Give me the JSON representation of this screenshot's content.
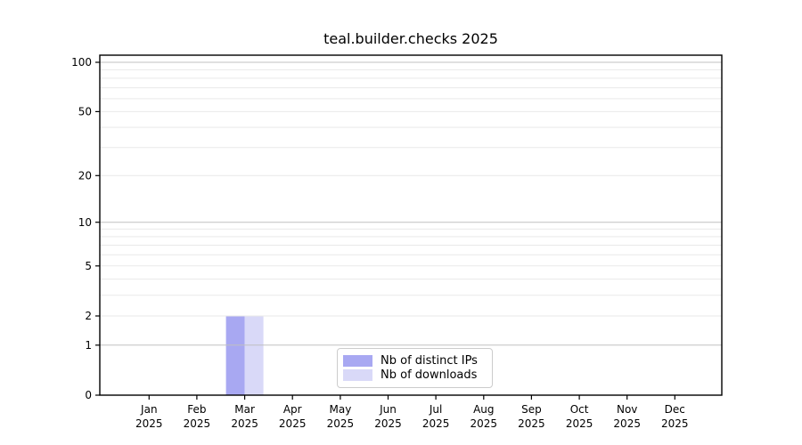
{
  "chart_data": {
    "type": "bar",
    "title": "teal.builder.checks 2025",
    "categories": [
      "Jan",
      "Feb",
      "Mar",
      "Apr",
      "May",
      "Jun",
      "Jul",
      "Aug",
      "Sep",
      "Oct",
      "Nov",
      "Dec"
    ],
    "category_year": "2025",
    "series": [
      {
        "name": "Nb of distinct IPs",
        "color": "#a8a8f2",
        "values": [
          0,
          0,
          2,
          0,
          0,
          0,
          0,
          0,
          0,
          0,
          0,
          0
        ]
      },
      {
        "name": "Nb of downloads",
        "color": "#d9d9f8",
        "values": [
          0,
          0,
          2,
          0,
          0,
          0,
          0,
          0,
          0,
          0,
          0,
          0
        ]
      }
    ],
    "y_ticks": [
      0,
      1,
      2,
      5,
      10,
      20,
      50,
      100
    ],
    "y_scale": "log1p",
    "ylim": [
      0,
      110
    ],
    "grid": {
      "on": true,
      "major": [
        1,
        10,
        100
      ],
      "minor": [
        2,
        3,
        4,
        5,
        6,
        7,
        8,
        9,
        20,
        30,
        40,
        50,
        60,
        70,
        80,
        90
      ]
    },
    "legend_position": "lower center",
    "xlabel": "",
    "ylabel": ""
  }
}
